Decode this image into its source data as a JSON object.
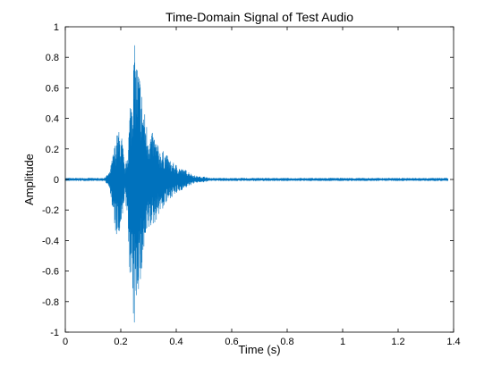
{
  "chart_data": {
    "type": "line",
    "title": "Time-Domain Signal of Test Audio",
    "xlabel": "Time (s)",
    "ylabel": "Amplitude",
    "xlim": [
      0,
      1.4
    ],
    "ylim": [
      -1,
      1
    ],
    "xticks": [
      0,
      0.2,
      0.4,
      0.6,
      0.8,
      1,
      1.2,
      1.4
    ],
    "xtick_labels": [
      "0",
      "0.2",
      "0.4",
      "0.6",
      "0.8",
      "1",
      "1.2",
      "1.4"
    ],
    "yticks": [
      -1,
      -0.8,
      -0.6,
      -0.4,
      -0.2,
      0,
      0.2,
      0.4,
      0.6,
      0.8,
      1
    ],
    "ytick_labels": [
      "-1",
      "-0.8",
      "-0.6",
      "-0.4",
      "-0.2",
      "0",
      "0.2",
      "0.4",
      "0.6",
      "0.8",
      "1"
    ],
    "grid": false,
    "line_color": "#0072BD",
    "series": [
      {
        "envelope": {
          "t": [
            0.0,
            0.14,
            0.16,
            0.175,
            0.19,
            0.205,
            0.215,
            0.225,
            0.235,
            0.245,
            0.25,
            0.26,
            0.27,
            0.28,
            0.29,
            0.3,
            0.32,
            0.34,
            0.36,
            0.38,
            0.4,
            0.42,
            0.44,
            0.46,
            0.48,
            0.5,
            0.52,
            0.55,
            1.38
          ],
          "upper": [
            0.01,
            0.01,
            0.05,
            0.2,
            0.33,
            0.28,
            0.06,
            0.2,
            0.55,
            0.8,
            0.89,
            0.78,
            0.7,
            0.52,
            0.4,
            0.32,
            0.3,
            0.2,
            0.18,
            0.12,
            0.1,
            0.07,
            0.06,
            0.03,
            0.02,
            0.02,
            0.01,
            0.01,
            0.01
          ],
          "lower": [
            -0.01,
            -0.01,
            -0.05,
            -0.3,
            -0.43,
            -0.32,
            -0.08,
            -0.35,
            -0.7,
            -0.98,
            -1.0,
            -0.72,
            -0.75,
            -0.55,
            -0.45,
            -0.35,
            -0.3,
            -0.22,
            -0.18,
            -0.12,
            -0.1,
            -0.07,
            -0.05,
            -0.03,
            -0.02,
            -0.02,
            -0.01,
            -0.01,
            -0.01
          ]
        }
      }
    ]
  }
}
